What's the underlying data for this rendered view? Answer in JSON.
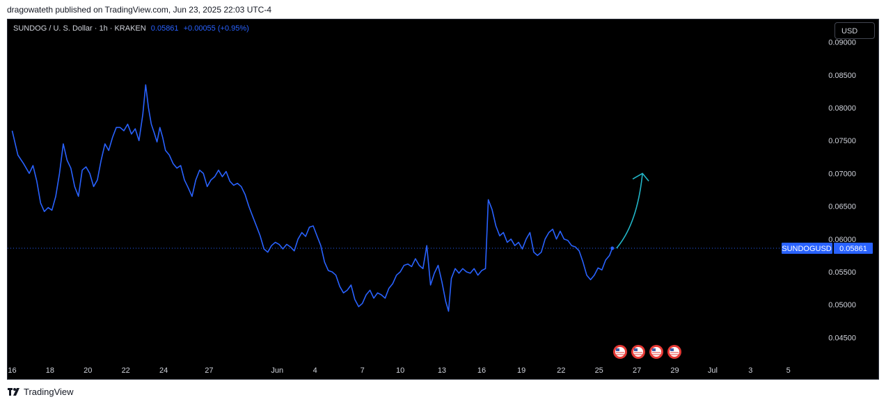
{
  "header": {
    "published_line": "dragowateth published on TradingView.com, Jun 23, 2025 22:03 UTC-4"
  },
  "legend": {
    "symbol": "SUNDOG / U. S. Dollar · 1h · KRAKEN",
    "last_price": "0.05861",
    "change": "+0.00055 (+0.95%)"
  },
  "currency_button": "USD",
  "footer": {
    "brand": "TradingView"
  },
  "colors": {
    "series": "#2962ff",
    "projection": "#22b6c8",
    "background": "#000000",
    "axis_text": "#d1d4dc",
    "event_marker": "#e53935"
  },
  "chart_data": {
    "type": "line",
    "title": "",
    "xlabel": "",
    "ylabel": "",
    "ylim": [
      0.0425,
      0.0925
    ],
    "y_ticks": [
      "0.09000",
      "0.08500",
      "0.08000",
      "0.07500",
      "0.07000",
      "0.06500",
      "0.06000",
      "0.05500",
      "0.05000",
      "0.04500"
    ],
    "x_ticks": [
      "16",
      "18",
      "20",
      "22",
      "24",
      "27",
      "Jun",
      "4",
      "7",
      "10",
      "13",
      "16",
      "19",
      "22",
      "25",
      "27",
      "29",
      "Jul",
      "3",
      "5"
    ],
    "x_unit": "trading days since 16 May 2025",
    "x_tick_positions": [
      0,
      2,
      4,
      6,
      8,
      10.4,
      14,
      16,
      18.5,
      20.5,
      22.7,
      24.8,
      26.9,
      29,
      31,
      33,
      35,
      37,
      39,
      41
    ],
    "last_value_label": "0.05861",
    "series_label": "SUNDOGUSD",
    "series": [
      {
        "name": "SUNDOGUSD",
        "points": [
          [
            0,
            0.0765
          ],
          [
            0.3,
            0.0728
          ],
          [
            0.6,
            0.0715
          ],
          [
            0.9,
            0.07
          ],
          [
            1.1,
            0.0712
          ],
          [
            1.3,
            0.0688
          ],
          [
            1.5,
            0.0655
          ],
          [
            1.7,
            0.0642
          ],
          [
            1.9,
            0.0648
          ],
          [
            2.1,
            0.0644
          ],
          [
            2.3,
            0.0665
          ],
          [
            2.5,
            0.07
          ],
          [
            2.7,
            0.0745
          ],
          [
            2.9,
            0.072
          ],
          [
            3.1,
            0.0708
          ],
          [
            3.3,
            0.068
          ],
          [
            3.5,
            0.0665
          ],
          [
            3.7,
            0.0705
          ],
          [
            3.9,
            0.071
          ],
          [
            4.1,
            0.07
          ],
          [
            4.3,
            0.068
          ],
          [
            4.5,
            0.069
          ],
          [
            4.7,
            0.072
          ],
          [
            4.9,
            0.0745
          ],
          [
            5.1,
            0.0735
          ],
          [
            5.3,
            0.0755
          ],
          [
            5.5,
            0.077
          ],
          [
            5.7,
            0.077
          ],
          [
            5.9,
            0.0765
          ],
          [
            6.1,
            0.0775
          ],
          [
            6.3,
            0.076
          ],
          [
            6.5,
            0.0768
          ],
          [
            6.7,
            0.075
          ],
          [
            6.9,
            0.079
          ],
          [
            7.05,
            0.0835
          ],
          [
            7.2,
            0.08
          ],
          [
            7.35,
            0.0775
          ],
          [
            7.5,
            0.0762
          ],
          [
            7.65,
            0.0748
          ],
          [
            7.8,
            0.077
          ],
          [
            7.95,
            0.0755
          ],
          [
            8.1,
            0.0735
          ],
          [
            8.3,
            0.0728
          ],
          [
            8.5,
            0.0715
          ],
          [
            8.7,
            0.0708
          ],
          [
            8.9,
            0.0712
          ],
          [
            9.1,
            0.069
          ],
          [
            9.3,
            0.0678
          ],
          [
            9.5,
            0.0665
          ],
          [
            9.7,
            0.069
          ],
          [
            9.9,
            0.0705
          ],
          [
            10.1,
            0.07
          ],
          [
            10.3,
            0.068
          ],
          [
            10.5,
            0.069
          ],
          [
            10.7,
            0.0695
          ],
          [
            10.9,
            0.0705
          ],
          [
            11.1,
            0.0695
          ],
          [
            11.3,
            0.0703
          ],
          [
            11.5,
            0.0688
          ],
          [
            11.7,
            0.0682
          ],
          [
            11.9,
            0.0685
          ],
          [
            12.1,
            0.068
          ],
          [
            12.3,
            0.0668
          ],
          [
            12.5,
            0.065
          ],
          [
            12.7,
            0.0635
          ],
          [
            12.9,
            0.062
          ],
          [
            13.1,
            0.0605
          ],
          [
            13.3,
            0.0585
          ],
          [
            13.5,
            0.058
          ],
          [
            13.7,
            0.059
          ],
          [
            13.9,
            0.0595
          ],
          [
            14.1,
            0.0592
          ],
          [
            14.3,
            0.0585
          ],
          [
            14.5,
            0.0592
          ],
          [
            14.7,
            0.0588
          ],
          [
            14.9,
            0.0582
          ],
          [
            15.1,
            0.06
          ],
          [
            15.3,
            0.061
          ],
          [
            15.5,
            0.0604
          ],
          [
            15.7,
            0.0618
          ],
          [
            15.9,
            0.062
          ],
          [
            16.1,
            0.0605
          ],
          [
            16.3,
            0.059
          ],
          [
            16.5,
            0.0565
          ],
          [
            16.7,
            0.0552
          ],
          [
            16.9,
            0.055
          ],
          [
            17.1,
            0.0545
          ],
          [
            17.3,
            0.0528
          ],
          [
            17.5,
            0.0518
          ],
          [
            17.7,
            0.0522
          ],
          [
            17.9,
            0.053
          ],
          [
            18.1,
            0.0508
          ],
          [
            18.3,
            0.0497
          ],
          [
            18.5,
            0.0502
          ],
          [
            18.7,
            0.0515
          ],
          [
            18.9,
            0.0522
          ],
          [
            19.1,
            0.051
          ],
          [
            19.3,
            0.0518
          ],
          [
            19.5,
            0.0515
          ],
          [
            19.7,
            0.051
          ],
          [
            19.9,
            0.0525
          ],
          [
            20.1,
            0.0532
          ],
          [
            20.3,
            0.0545
          ],
          [
            20.5,
            0.055
          ],
          [
            20.7,
            0.056
          ],
          [
            20.9,
            0.0562
          ],
          [
            21.1,
            0.0558
          ],
          [
            21.3,
            0.057
          ],
          [
            21.5,
            0.056
          ],
          [
            21.7,
            0.0555
          ],
          [
            21.9,
            0.059
          ],
          [
            22.1,
            0.053
          ],
          [
            22.3,
            0.0548
          ],
          [
            22.5,
            0.056
          ],
          [
            22.7,
            0.0535
          ],
          [
            22.9,
            0.0505
          ],
          [
            23.05,
            0.049
          ],
          [
            23.2,
            0.054
          ],
          [
            23.4,
            0.0555
          ],
          [
            23.6,
            0.0548
          ],
          [
            23.8,
            0.0555
          ],
          [
            24.0,
            0.055
          ],
          [
            24.2,
            0.0548
          ],
          [
            24.4,
            0.0555
          ],
          [
            24.6,
            0.0545
          ],
          [
            24.8,
            0.0552
          ],
          [
            25.0,
            0.0555
          ],
          [
            25.15,
            0.066
          ],
          [
            25.35,
            0.0645
          ],
          [
            25.55,
            0.062
          ],
          [
            25.75,
            0.0605
          ],
          [
            25.95,
            0.061
          ],
          [
            26.15,
            0.0595
          ],
          [
            26.35,
            0.06
          ],
          [
            26.55,
            0.059
          ],
          [
            26.75,
            0.0595
          ],
          [
            26.95,
            0.0585
          ],
          [
            27.15,
            0.06
          ],
          [
            27.35,
            0.061
          ],
          [
            27.55,
            0.058
          ],
          [
            27.75,
            0.0575
          ],
          [
            27.95,
            0.058
          ],
          [
            28.15,
            0.06
          ],
          [
            28.35,
            0.061
          ],
          [
            28.55,
            0.0615
          ],
          [
            28.75,
            0.06
          ],
          [
            28.95,
            0.0612
          ],
          [
            29.15,
            0.06
          ],
          [
            29.35,
            0.0598
          ],
          [
            29.55,
            0.059
          ],
          [
            29.75,
            0.0588
          ],
          [
            29.95,
            0.0582
          ],
          [
            30.15,
            0.0565
          ],
          [
            30.35,
            0.0545
          ],
          [
            30.55,
            0.0538
          ],
          [
            30.75,
            0.0545
          ],
          [
            30.95,
            0.0556
          ],
          [
            31.15,
            0.0553
          ],
          [
            31.35,
            0.0568
          ],
          [
            31.55,
            0.0575
          ],
          [
            31.7,
            0.0586
          ]
        ]
      }
    ],
    "projection_arrow": {
      "from": [
        31.7,
        0.0586
      ],
      "to": [
        33.0,
        0.07
      ]
    },
    "event_marker_count": 4
  }
}
